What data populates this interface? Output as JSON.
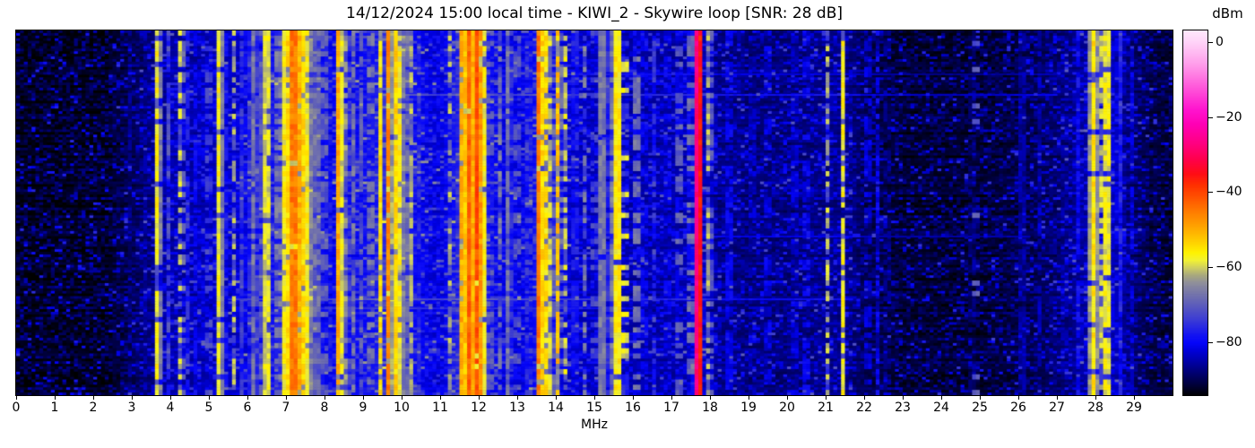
{
  "title": "14/12/2024 15:00 local time - KIWI_2 - Skywire loop [SNR: 28 dB]",
  "axes": {
    "x_label": "MHz",
    "xlim": [
      0,
      30
    ],
    "x_ticks": [
      0,
      1,
      2,
      3,
      4,
      5,
      6,
      7,
      8,
      9,
      10,
      11,
      12,
      13,
      14,
      15,
      16,
      17,
      18,
      19,
      20,
      21,
      22,
      23,
      24,
      25,
      26,
      27,
      28,
      29
    ]
  },
  "colorbar": {
    "label": "dBm",
    "ticks": [
      0,
      -20,
      -40,
      -60,
      -80
    ],
    "vmax": 3,
    "vmin": -94,
    "stops": [
      [
        -94,
        "#000000"
      ],
      [
        -91,
        "#00003c"
      ],
      [
        -88,
        "#000070"
      ],
      [
        -85,
        "#0000a6"
      ],
      [
        -82,
        "#0000d9"
      ],
      [
        -80,
        "#0505fa"
      ],
      [
        -78,
        "#1313f2"
      ],
      [
        -74,
        "#3a3ad6"
      ],
      [
        -70,
        "#5c5cbc"
      ],
      [
        -67,
        "#7474ab"
      ],
      [
        -64,
        "#90909a"
      ],
      [
        -62,
        "#a8a87e"
      ],
      [
        -60,
        "#cfcf60"
      ],
      [
        -58,
        "#f2f233"
      ],
      [
        -56,
        "#fff200"
      ],
      [
        -53,
        "#ffcf00"
      ],
      [
        -49,
        "#ffa300"
      ],
      [
        -45,
        "#ff7b00"
      ],
      [
        -41,
        "#ff4f00"
      ],
      [
        -38,
        "#ff3000"
      ],
      [
        -35,
        "#ff0d16"
      ],
      [
        -31,
        "#ff004e"
      ],
      [
        -27,
        "#ff0080"
      ],
      [
        -22,
        "#ff00b4"
      ],
      [
        -18,
        "#ff14ce"
      ],
      [
        -12,
        "#ff58da"
      ],
      [
        -6,
        "#ff9cea"
      ],
      [
        0,
        "#ffd4f8"
      ],
      [
        3,
        "#ffe8fc"
      ]
    ]
  },
  "chart_data": {
    "type": "heatmap",
    "subtype": "radio-spectrum-waterfall",
    "x_unit": "MHz",
    "x_range": [
      0,
      30
    ],
    "value_unit": "dBm",
    "value_range": [
      -94,
      3
    ],
    "grid": false,
    "seed": 1437,
    "noise_floor_dbm": [
      [
        0,
        -93
      ],
      [
        2.3,
        -93
      ],
      [
        2.8,
        -91
      ],
      [
        3.2,
        -89
      ],
      [
        3.6,
        -87
      ],
      [
        4.0,
        -85
      ],
      [
        4.6,
        -85
      ],
      [
        5.2,
        -84
      ],
      [
        5.8,
        -83
      ],
      [
        6.3,
        -81
      ],
      [
        6.9,
        -77
      ],
      [
        7.3,
        -75
      ],
      [
        7.65,
        -77
      ],
      [
        8.0,
        -81
      ],
      [
        8.6,
        -80
      ],
      [
        9.2,
        -79
      ],
      [
        9.5,
        -76
      ],
      [
        10.0,
        -76
      ],
      [
        10.4,
        -80
      ],
      [
        11.0,
        -83
      ],
      [
        11.5,
        -76
      ],
      [
        11.9,
        -74
      ],
      [
        12.15,
        -77
      ],
      [
        12.5,
        -81
      ],
      [
        13.0,
        -82
      ],
      [
        13.5,
        -79
      ],
      [
        14.0,
        -80
      ],
      [
        14.4,
        -83
      ],
      [
        15.0,
        -84
      ],
      [
        15.5,
        -83
      ],
      [
        16.0,
        -85
      ],
      [
        16.5,
        -85
      ],
      [
        17.3,
        -85
      ],
      [
        17.7,
        -83
      ],
      [
        18.2,
        -87
      ],
      [
        19.0,
        -88
      ],
      [
        20.0,
        -88
      ],
      [
        21.0,
        -87
      ],
      [
        21.6,
        -87
      ],
      [
        22.0,
        -90
      ],
      [
        23.0,
        -92
      ],
      [
        24.0,
        -92
      ],
      [
        25.0,
        -92
      ],
      [
        26.0,
        -91
      ],
      [
        27.0,
        -89
      ],
      [
        27.8,
        -85
      ],
      [
        28.4,
        -84
      ],
      [
        28.9,
        -88
      ],
      [
        29.4,
        -91
      ],
      [
        30,
        -92
      ]
    ],
    "signals": [
      [
        2.6,
        0.06,
        -84,
        0.95
      ],
      [
        2.95,
        0.05,
        -88,
        0.6
      ],
      [
        3.35,
        0.05,
        -86,
        0.5
      ],
      [
        3.66,
        0.08,
        -57,
        0.8
      ],
      [
        3.8,
        0.05,
        -80,
        0.5
      ],
      [
        3.95,
        0.06,
        -72,
        0.55
      ],
      [
        4.1,
        0.05,
        -80,
        0.5
      ],
      [
        4.27,
        0.06,
        -60,
        0.45
      ],
      [
        4.46,
        0.05,
        -76,
        0.55
      ],
      [
        4.65,
        0.05,
        -80,
        0.5
      ],
      [
        4.8,
        0.05,
        -74,
        0.5
      ],
      [
        5.0,
        0.05,
        -64,
        0.35
      ],
      [
        5.1,
        0.05,
        -75,
        0.4
      ],
      [
        5.28,
        0.07,
        -57,
        0.92
      ],
      [
        5.47,
        0.05,
        -78,
        0.5
      ],
      [
        5.65,
        0.06,
        -61,
        0.4
      ],
      [
        5.82,
        0.06,
        -74,
        0.6
      ],
      [
        6.0,
        0.08,
        -72,
        0.7
      ],
      [
        6.16,
        0.12,
        -67,
        0.85
      ],
      [
        6.3,
        0.06,
        -65,
        0.6
      ],
      [
        6.42,
        0.08,
        -62,
        0.65
      ],
      [
        6.52,
        0.05,
        -50,
        0.85
      ],
      [
        6.8,
        0.05,
        -58,
        0.6
      ],
      [
        6.95,
        0.08,
        -57,
        0.9
      ],
      [
        7.08,
        0.07,
        -54,
        0.9
      ],
      [
        7.2,
        0.13,
        -45,
        0.96
      ],
      [
        7.33,
        0.08,
        -50,
        0.92
      ],
      [
        7.44,
        0.1,
        -54,
        0.88
      ],
      [
        7.56,
        0.08,
        -57,
        0.85
      ],
      [
        7.7,
        0.06,
        -64,
        0.6
      ],
      [
        7.8,
        0.1,
        -68,
        0.75
      ],
      [
        8.0,
        0.06,
        -61,
        0.5
      ],
      [
        8.12,
        0.05,
        -70,
        0.5
      ],
      [
        8.38,
        0.07,
        -50,
        0.95
      ],
      [
        8.55,
        0.08,
        -64,
        0.55
      ],
      [
        8.75,
        0.06,
        -67,
        0.5
      ],
      [
        8.95,
        0.05,
        -70,
        0.45
      ],
      [
        9.2,
        0.06,
        -59,
        0.5
      ],
      [
        9.45,
        0.07,
        -55,
        0.85
      ],
      [
        9.65,
        0.07,
        -46,
        0.92
      ],
      [
        9.8,
        0.1,
        -54,
        0.88
      ],
      [
        9.95,
        0.1,
        -57,
        0.8
      ],
      [
        10.1,
        0.09,
        -59,
        0.75
      ],
      [
        10.25,
        0.07,
        -62,
        0.6
      ],
      [
        10.45,
        0.05,
        -76,
        0.5
      ],
      [
        10.7,
        0.05,
        -79,
        0.6
      ],
      [
        11.0,
        0.05,
        -72,
        0.4
      ],
      [
        11.25,
        0.05,
        -62,
        0.35
      ],
      [
        11.6,
        0.1,
        -50,
        0.9
      ],
      [
        11.76,
        0.12,
        -43,
        0.95
      ],
      [
        11.92,
        0.12,
        -41,
        0.97
      ],
      [
        12.07,
        0.08,
        -48,
        0.9
      ],
      [
        12.3,
        0.05,
        -62,
        0.4
      ],
      [
        12.55,
        0.05,
        -66,
        0.45
      ],
      [
        12.78,
        0.1,
        -67,
        0.8
      ],
      [
        13.0,
        0.05,
        -63,
        0.35
      ],
      [
        13.3,
        0.05,
        -66,
        0.4
      ],
      [
        13.57,
        0.06,
        -45,
        0.95
      ],
      [
        13.72,
        0.09,
        -55,
        0.8
      ],
      [
        13.87,
        0.06,
        -60,
        0.6
      ],
      [
        14.05,
        0.06,
        -52,
        0.7
      ],
      [
        14.22,
        0.06,
        -59,
        0.5
      ],
      [
        14.5,
        0.08,
        -69,
        0.65
      ],
      [
        14.75,
        0.05,
        -66,
        0.4
      ],
      [
        15.0,
        0.05,
        -64,
        0.4
      ],
      [
        15.22,
        0.05,
        -58,
        0.9
      ],
      [
        15.42,
        0.09,
        -67,
        0.7
      ],
      [
        15.58,
        0.05,
        -47,
        0.97
      ],
      [
        15.8,
        0.05,
        -50,
        0.18
      ],
      [
        16.08,
        0.05,
        -59,
        0.45
      ],
      [
        16.3,
        0.05,
        -72,
        0.5
      ],
      [
        16.55,
        0.05,
        -74,
        0.5
      ],
      [
        16.9,
        0.05,
        -72,
        0.5
      ],
      [
        17.18,
        0.05,
        -61,
        0.5
      ],
      [
        17.52,
        0.06,
        -59,
        0.5
      ],
      [
        17.68,
        0.07,
        -27,
        1.0
      ],
      [
        17.97,
        0.05,
        -62,
        0.5
      ],
      [
        18.1,
        0.05,
        -75,
        0.5
      ],
      [
        18.5,
        0.08,
        -72,
        0.65
      ],
      [
        18.8,
        0.05,
        -78,
        0.5
      ],
      [
        19.1,
        0.05,
        -75,
        0.45
      ],
      [
        19.5,
        0.05,
        -73,
        0.45
      ],
      [
        19.8,
        0.05,
        -80,
        0.5
      ],
      [
        20.2,
        0.06,
        -74,
        0.6
      ],
      [
        20.5,
        0.05,
        -72,
        0.5
      ],
      [
        20.8,
        0.05,
        -80,
        0.4
      ],
      [
        21.05,
        0.05,
        -61,
        0.5
      ],
      [
        21.45,
        0.06,
        -57,
        0.65
      ],
      [
        21.8,
        0.04,
        -82,
        0.5
      ],
      [
        22.1,
        0.05,
        -74,
        0.5
      ],
      [
        22.35,
        0.04,
        -80,
        0.45
      ],
      [
        22.6,
        0.04,
        -79,
        0.7
      ],
      [
        23.1,
        0.04,
        -86,
        0.5
      ],
      [
        23.5,
        0.04,
        -84,
        0.5
      ],
      [
        24.0,
        0.04,
        -87,
        0.4
      ],
      [
        24.5,
        0.04,
        -85,
        0.4
      ],
      [
        24.8,
        0.03,
        -81,
        0.9
      ],
      [
        24.88,
        0.04,
        -62,
        0.12
      ],
      [
        25.3,
        0.04,
        -84,
        0.5
      ],
      [
        25.7,
        0.04,
        -86,
        0.4
      ],
      [
        26.1,
        0.03,
        -77,
        0.95
      ],
      [
        26.55,
        0.04,
        -84,
        0.5
      ],
      [
        26.9,
        0.05,
        -79,
        0.6
      ],
      [
        27.2,
        0.05,
        -77,
        0.6
      ],
      [
        27.55,
        0.05,
        -79,
        0.6
      ],
      [
        27.95,
        0.09,
        -55,
        0.85
      ],
      [
        28.12,
        0.06,
        -60,
        0.6
      ],
      [
        28.28,
        0.06,
        -49,
        0.8
      ],
      [
        28.5,
        0.1,
        -74,
        0.8
      ],
      [
        28.68,
        0.08,
        -77,
        0.7
      ],
      [
        28.95,
        0.04,
        -82,
        0.5
      ],
      [
        29.3,
        0.04,
        -84,
        0.5
      ],
      [
        29.6,
        0.04,
        -83,
        0.5
      ]
    ],
    "hlines": [
      [
        0.118,
        13.5,
        27,
        5
      ],
      [
        0.1745,
        9.5,
        27,
        8
      ],
      [
        0.563,
        18,
        26.3,
        6
      ],
      [
        0.735,
        5.5,
        21.7,
        8
      ],
      [
        0.76,
        6.8,
        16,
        4
      ]
    ]
  }
}
